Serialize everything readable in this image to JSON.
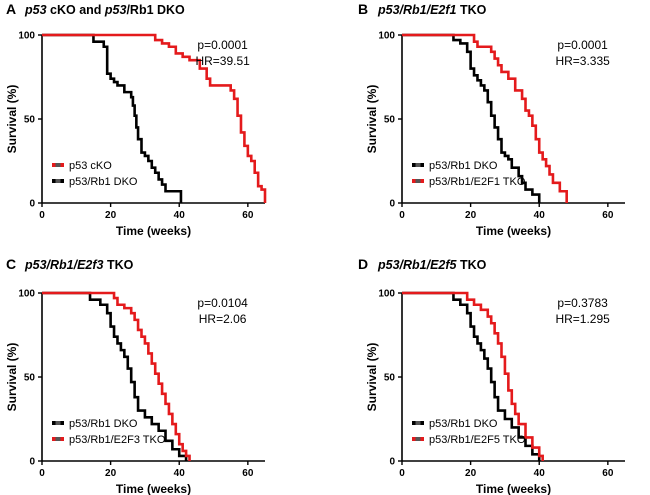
{
  "chart_data": [
    {
      "type": "line",
      "panel": "A",
      "title": "p53 cKO and p53/Rb1 DKO",
      "title_italic_parts": [
        "p53",
        "p53/Rb1"
      ],
      "xlabel": "Time (weeks)",
      "ylabel": "Survival (%)",
      "xlim": [
        0,
        65
      ],
      "ylim": [
        0,
        100
      ],
      "xticks": [
        0,
        20,
        40,
        60
      ],
      "yticks": [
        0,
        50,
        100
      ],
      "annotations": [
        "p=0.0001",
        "HR=39.51"
      ],
      "legend_position": "bottom-left",
      "series": [
        {
          "name": "p53/Rb1 DKO",
          "color": "#000000",
          "x": [
            0,
            15,
            18,
            19,
            20,
            21,
            22,
            24,
            26,
            26.5,
            27,
            27.5,
            28,
            29,
            30,
            31,
            32,
            33,
            34,
            35,
            36,
            38,
            40,
            40.5
          ],
          "y": [
            100,
            96,
            93,
            77,
            74,
            72,
            70,
            66,
            63,
            58,
            52,
            45,
            38,
            30,
            28,
            25,
            21,
            18,
            14,
            11,
            7,
            7,
            7,
            0
          ]
        },
        {
          "name": "p53 cKO",
          "color": "#e41a1c",
          "x": [
            0,
            32,
            33,
            35,
            37,
            39,
            41,
            43,
            46,
            48,
            49,
            50,
            54,
            55,
            56,
            57,
            58,
            59,
            60,
            61,
            62,
            63,
            64,
            65
          ],
          "y": [
            100,
            100,
            97,
            95,
            93,
            89,
            87,
            85,
            80,
            74,
            70,
            70,
            70,
            67,
            62,
            52,
            42,
            34,
            28,
            25,
            18,
            10,
            8,
            0
          ]
        }
      ]
    },
    {
      "type": "line",
      "panel": "B",
      "title": "p53/Rb1/E2f1 TKO",
      "title_italic_parts": [
        "p53/Rb1/E2f1"
      ],
      "xlabel": "Time (weeks)",
      "ylabel": "Survival (%)",
      "xlim": [
        0,
        65
      ],
      "ylim": [
        0,
        100
      ],
      "xticks": [
        0,
        20,
        40,
        60
      ],
      "yticks": [
        0,
        50,
        100
      ],
      "annotations": [
        "p=0.0001",
        "HR=3.335"
      ],
      "legend_position": "bottom-left",
      "series": [
        {
          "name": "p53/Rb1 DKO",
          "color": "#000000",
          "x": [
            0,
            15,
            17,
            19,
            20,
            21,
            22,
            23,
            24,
            25,
            26,
            27,
            28,
            29,
            30,
            31,
            32,
            34,
            35,
            36,
            38,
            40
          ],
          "y": [
            100,
            97,
            95,
            90,
            80,
            76,
            73,
            70,
            67,
            60,
            52,
            45,
            38,
            30,
            28,
            26,
            21,
            16,
            12,
            8,
            5,
            0
          ]
        },
        {
          "name": "p53/Rb1/E2F1 TKO",
          "color": "#e41a1c",
          "x": [
            0,
            20,
            21,
            22,
            24,
            26,
            27,
            28,
            29,
            31,
            33,
            35,
            36,
            37,
            38,
            39,
            40,
            41,
            42,
            43,
            44,
            46,
            48
          ],
          "y": [
            100,
            100,
            96,
            93,
            93,
            90,
            86,
            82,
            78,
            74,
            67,
            62,
            55,
            52,
            46,
            38,
            30,
            26,
            22,
            17,
            12,
            7,
            0
          ]
        }
      ]
    },
    {
      "type": "line",
      "panel": "C",
      "title": "p53/Rb1/E2f3 TKO",
      "title_italic_parts": [
        "p53/Rb1/E2f3"
      ],
      "xlabel": "Time (weeks)",
      "ylabel": "Survival (%)",
      "xlim": [
        0,
        65
      ],
      "ylim": [
        0,
        100
      ],
      "xticks": [
        0,
        20,
        40,
        60
      ],
      "yticks": [
        0,
        50,
        100
      ],
      "annotations": [
        "p=0.0104",
        "HR=2.06"
      ],
      "legend_position": "bottom-left",
      "series": [
        {
          "name": "p53/Rb1 DKO",
          "color": "#000000",
          "x": [
            0,
            14,
            17,
            19,
            20,
            21,
            22,
            23,
            24,
            25,
            26,
            27,
            28,
            30,
            32,
            34,
            36,
            38,
            40,
            42
          ],
          "y": [
            100,
            96,
            93,
            88,
            80,
            74,
            70,
            66,
            62,
            55,
            47,
            38,
            30,
            26,
            22,
            18,
            12,
            7,
            3,
            0
          ]
        },
        {
          "name": "p53/Rb1/E2F3 TKO",
          "color": "#e41a1c",
          "x": [
            0,
            20,
            21,
            22,
            24,
            26,
            27,
            28,
            29,
            30,
            31,
            32,
            33,
            34,
            35,
            36,
            37,
            38,
            39,
            40,
            41,
            42,
            43
          ],
          "y": [
            100,
            100,
            97,
            93,
            91,
            88,
            84,
            78,
            74,
            70,
            64,
            58,
            52,
            46,
            40,
            34,
            28,
            22,
            16,
            10,
            6,
            3,
            0
          ]
        }
      ]
    },
    {
      "type": "line",
      "panel": "D",
      "title": "p53/Rb1/E2f5 TKO",
      "title_italic_parts": [
        "p53/Rb1/E2f5"
      ],
      "xlabel": "Time (weeks)",
      "ylabel": "Survival (%)",
      "xlim": [
        0,
        65
      ],
      "ylim": [
        0,
        100
      ],
      "xticks": [
        0,
        20,
        40,
        60
      ],
      "yticks": [
        0,
        50,
        100
      ],
      "annotations": [
        "p=0.3783",
        "HR=1.295"
      ],
      "legend_position": "bottom-left",
      "series": [
        {
          "name": "p53/Rb1 DKO",
          "color": "#000000",
          "x": [
            0,
            15,
            17,
            19,
            20,
            21,
            22,
            23,
            24,
            25,
            26,
            27,
            28,
            30,
            32,
            34,
            36,
            38,
            40
          ],
          "y": [
            100,
            96,
            93,
            88,
            80,
            74,
            70,
            66,
            61,
            55,
            47,
            38,
            30,
            25,
            20,
            14,
            9,
            4,
            0
          ]
        },
        {
          "name": "p53/Rb1/E2F5 TKO",
          "color": "#e41a1c",
          "x": [
            0,
            18,
            19,
            21,
            23,
            25,
            26,
            27,
            28,
            29,
            30,
            31,
            32,
            33,
            34,
            36,
            38,
            40,
            41
          ],
          "y": [
            100,
            100,
            96,
            93,
            90,
            86,
            82,
            76,
            70,
            62,
            52,
            42,
            34,
            28,
            22,
            14,
            8,
            3,
            0
          ]
        }
      ]
    }
  ]
}
